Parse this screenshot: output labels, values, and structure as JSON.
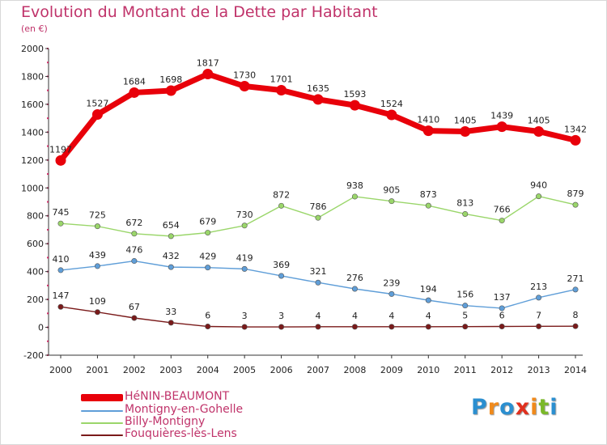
{
  "header": {
    "title": "Evolution du Montant de la Dette par Habitant",
    "subtitle": "(en €)"
  },
  "brand": {
    "logo_text": "Proxiti",
    "logo_letters": [
      "P",
      "r",
      "o",
      "x",
      "i",
      "t",
      "i"
    ],
    "logo_colors": [
      "#2b8fd0",
      "#f08a1c",
      "#2b8fd0",
      "#e0301e",
      "#f08a1c",
      "#7ab829",
      "#2b8fd0"
    ]
  },
  "chart_data": {
    "type": "line",
    "title": "Evolution du Montant de la Dette par Habitant",
    "subtitle": "(en €)",
    "xlabel": "",
    "ylabel": "",
    "x": [
      "2000",
      "2001",
      "2002",
      "2003",
      "2004",
      "2005",
      "2006",
      "2007",
      "2008",
      "2009",
      "2010",
      "2011",
      "2012",
      "2013",
      "2014"
    ],
    "yticks": [
      -200,
      0,
      200,
      400,
      600,
      800,
      1000,
      1200,
      1400,
      1600,
      1800,
      2000
    ],
    "ylim": [
      -200,
      2000
    ],
    "grid": false,
    "legend_position": "bottom-left",
    "series": [
      {
        "name": "HéNIN-BEAUMONT",
        "color": "#e8000a",
        "emphasis": true,
        "values": [
          1197,
          1527,
          1684,
          1698,
          1817,
          1730,
          1701,
          1635,
          1593,
          1524,
          1410,
          1405,
          1439,
          1405,
          1342
        ],
        "labels": [
          "1197",
          "1527",
          "1684",
          "1698",
          "1817",
          "1730",
          "1701",
          "1635",
          "1593",
          "1524",
          "1410",
          "1405",
          "1439",
          "1405",
          "1342"
        ]
      },
      {
        "name": "Montigny-en-Gohelle",
        "color": "#5f9ed8",
        "emphasis": false,
        "values": [
          410,
          439,
          476,
          432,
          429,
          419,
          369,
          321,
          276,
          239,
          194,
          156,
          137,
          213,
          271
        ],
        "labels": [
          "410",
          "439",
          "476",
          "432",
          "429",
          "419",
          "369",
          "321",
          "276",
          "239",
          "194",
          "156",
          "137",
          "213",
          "271"
        ]
      },
      {
        "name": "Billy-Montigny",
        "color": "#9ad66a",
        "emphasis": false,
        "values": [
          745,
          725,
          672,
          654,
          679,
          730,
          872,
          786,
          938,
          905,
          873,
          813,
          766,
          940,
          879
        ],
        "labels": [
          "745",
          "725",
          "672",
          "654",
          "679",
          "730",
          "872",
          "786",
          "938",
          "905",
          "873",
          "813",
          "766",
          "940",
          "879"
        ]
      },
      {
        "name": "Fouquières-lès-Lens",
        "color": "#7a1a1a",
        "emphasis": false,
        "values": [
          147,
          109,
          67,
          33,
          6,
          3,
          3,
          4,
          4,
          4,
          4,
          5,
          6,
          7,
          8
        ],
        "labels": [
          "147",
          "109",
          "67",
          "33",
          "6",
          "3",
          "3",
          "4",
          "4",
          "4",
          "4",
          "5",
          "6",
          "7",
          "8"
        ]
      }
    ]
  }
}
